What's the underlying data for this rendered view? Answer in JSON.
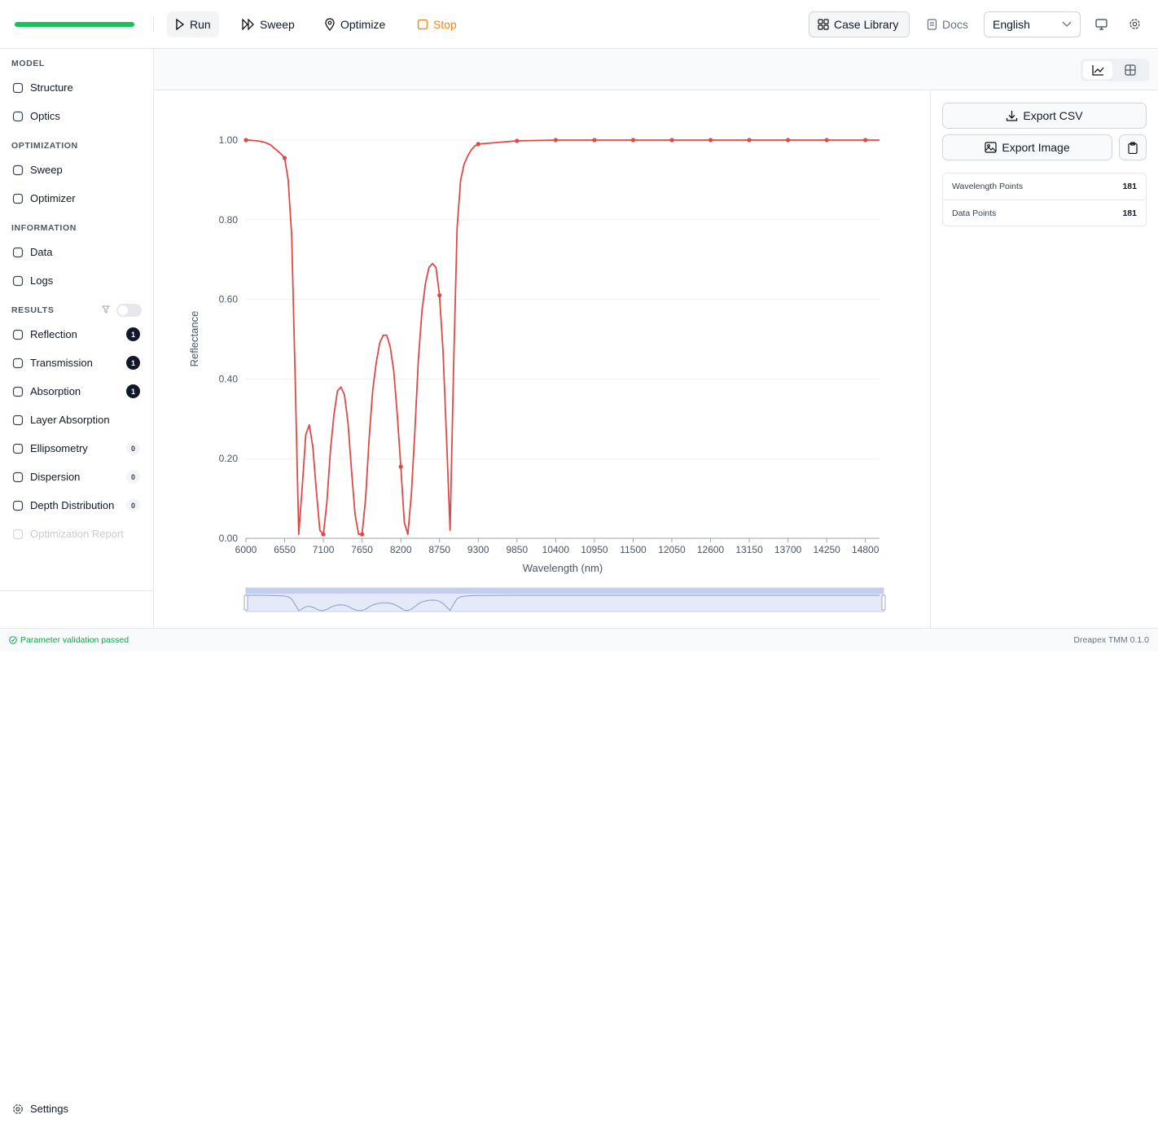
{
  "toolbar": {
    "run": "Run",
    "sweep": "Sweep",
    "optimize": "Optimize",
    "stop": "Stop",
    "case_library": "Case Library",
    "docs": "Docs",
    "language": "English"
  },
  "sidebar": {
    "sections": [
      {
        "title": "MODEL",
        "items": [
          {
            "label": "Structure"
          },
          {
            "label": "Optics"
          }
        ]
      },
      {
        "title": "OPTIMIZATION",
        "items": [
          {
            "label": "Sweep"
          },
          {
            "label": "Optimizer"
          }
        ]
      },
      {
        "title": "INFORMATION",
        "items": [
          {
            "label": "Data"
          },
          {
            "label": "Logs"
          }
        ]
      },
      {
        "title": "RESULTS",
        "items": [
          {
            "label": "Reflection",
            "badge": 1
          },
          {
            "label": "Transmission",
            "badge": 1
          },
          {
            "label": "Absorption",
            "badge": 1
          },
          {
            "label": "Layer Absorption"
          },
          {
            "label": "Ellipsometry",
            "badge": 0
          },
          {
            "label": "Dispersion",
            "badge": 0
          },
          {
            "label": "Depth Distribution",
            "badge": 0
          },
          {
            "label": "Optimization Report",
            "disabled": true
          }
        ]
      }
    ],
    "settings": "Settings"
  },
  "export": {
    "csv": "Export CSV",
    "image": "Export Image"
  },
  "stats": [
    {
      "label": "Wavelength Points",
      "value": 181
    },
    {
      "label": "Data Points",
      "value": 181
    }
  ],
  "status": {
    "message": "Parameter validation passed",
    "version": "Dreapex TMM 0.1.0"
  },
  "chart_data": {
    "type": "line",
    "x_label": "Wavelength (nm)",
    "y_label": "Reflectance",
    "color": "#e04848",
    "grid": true,
    "xlim": [
      6000,
      15000
    ],
    "ylim": [
      0,
      1
    ],
    "xticks": [
      6000,
      6550,
      7100,
      7650,
      8200,
      8750,
      9300,
      9850,
      10400,
      10950,
      11500,
      12050,
      12600,
      13150,
      13700,
      14250,
      14800
    ],
    "yticks": [
      {
        "value": 0,
        "label": "0.00"
      },
      {
        "value": 0.2,
        "label": "0.20"
      },
      {
        "value": 0.4,
        "label": "0.40"
      },
      {
        "value": 0.6,
        "label": "0.60"
      },
      {
        "value": 0.8,
        "label": "0.80"
      },
      {
        "value": 1,
        "label": "1.00"
      }
    ],
    "x": [
      6000,
      6050,
      6100,
      6150,
      6200,
      6250,
      6300,
      6350,
      6400,
      6450,
      6500,
      6550,
      6600,
      6650,
      6700,
      6750,
      6800,
      6850,
      6900,
      6950,
      7000,
      7050,
      7100,
      7150,
      7200,
      7250,
      7300,
      7350,
      7400,
      7450,
      7500,
      7550,
      7600,
      7650,
      7700,
      7750,
      7800,
      7850,
      7900,
      7950,
      8000,
      8050,
      8100,
      8150,
      8200,
      8250,
      8300,
      8350,
      8400,
      8450,
      8500,
      8550,
      8600,
      8650,
      8700,
      8750,
      8800,
      8850,
      8900,
      8950,
      9000,
      9050,
      9100,
      9150,
      9200,
      9250,
      9300,
      9850,
      10400,
      10950,
      11500,
      12050,
      12600,
      13150,
      13700,
      14250,
      14800,
      15000
    ],
    "series": [
      {
        "name": "Reflectance",
        "color": "#e04848",
        "values": [
          1.0,
          1.0,
          0.999,
          0.998,
          0.997,
          0.995,
          0.992,
          0.988,
          0.98,
          0.973,
          0.965,
          0.955,
          0.9,
          0.76,
          0.4,
          0.01,
          0.13,
          0.26,
          0.285,
          0.23,
          0.12,
          0.02,
          0.01,
          0.09,
          0.22,
          0.31,
          0.37,
          0.38,
          0.36,
          0.29,
          0.17,
          0.06,
          0.01,
          0.01,
          0.1,
          0.25,
          0.37,
          0.44,
          0.49,
          0.51,
          0.51,
          0.48,
          0.42,
          0.31,
          0.18,
          0.04,
          0.01,
          0.11,
          0.27,
          0.45,
          0.57,
          0.64,
          0.68,
          0.69,
          0.68,
          0.61,
          0.47,
          0.25,
          0.02,
          0.43,
          0.78,
          0.9,
          0.94,
          0.96,
          0.975,
          0.985,
          0.99,
          0.998,
          1.0,
          1.0,
          1.0,
          1.0,
          1.0,
          1.0,
          1.0,
          1.0,
          1.0,
          1.0
        ]
      }
    ]
  }
}
